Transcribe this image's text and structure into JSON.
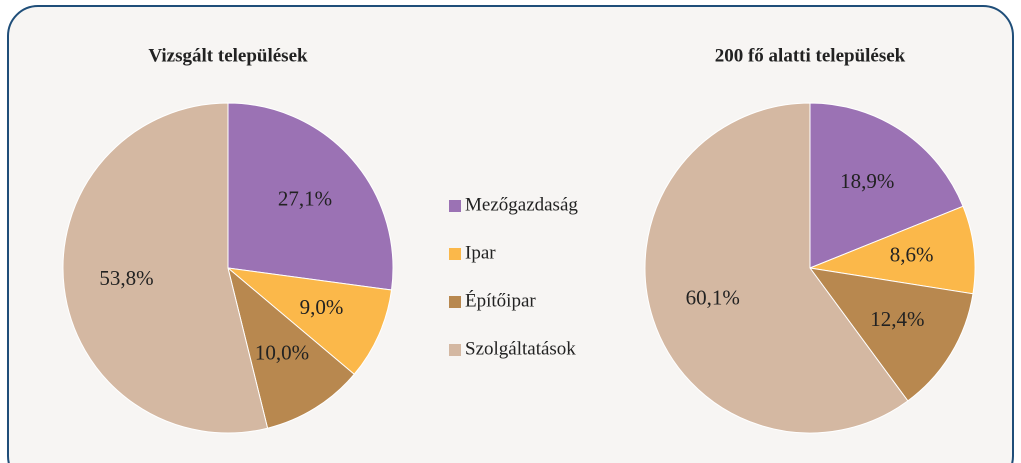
{
  "chart_data": [
    {
      "type": "pie",
      "title": "Vizsgált települések",
      "categories": [
        "Mezőgazdaság",
        "Ipar",
        "Építőipar",
        "Szolgáltatások"
      ],
      "colors": [
        "#9b72b4",
        "#fbb84a",
        "#b8884f",
        "#d4b8a2"
      ],
      "values": [
        27.1,
        9.0,
        10.0,
        53.8
      ],
      "value_labels": [
        "27,1%",
        "9,0%",
        "10,0%",
        "53,8%"
      ]
    },
    {
      "type": "pie",
      "title": "200 fő alatti települések",
      "values": [
        18.9,
        8.6,
        12.4,
        60.1
      ],
      "value_labels": [
        "18,9%",
        "8,6%",
        "12,4%",
        "60,1%"
      ]
    }
  ]
}
